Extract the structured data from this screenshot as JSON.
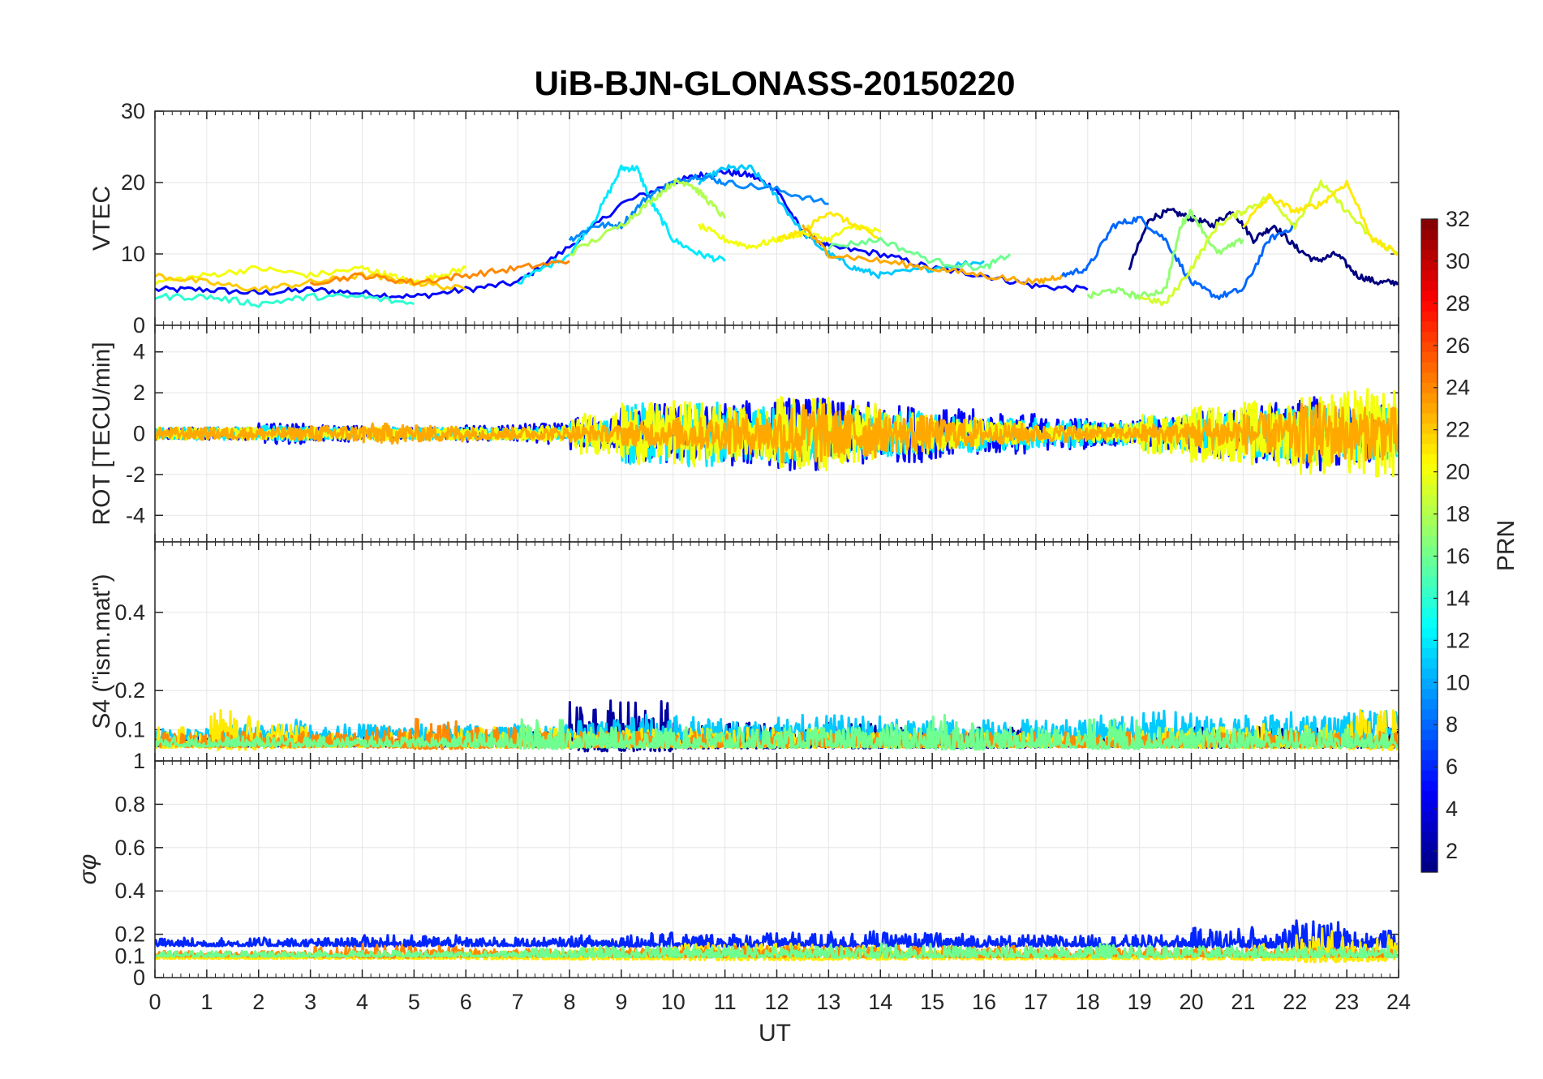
{
  "chart_data": {
    "type": "line",
    "title": "UiB-BJN-GLONASS-20150220",
    "xlabel": "UT",
    "xlim": [
      0,
      24
    ],
    "x_ticks": [
      "0",
      "1",
      "2",
      "3",
      "4",
      "5",
      "6",
      "7",
      "8",
      "9",
      "10",
      "11",
      "12",
      "13",
      "14",
      "15",
      "16",
      "17",
      "18",
      "19",
      "20",
      "21",
      "22",
      "23",
      "24"
    ],
    "grid": true,
    "colorbar": {
      "label": "PRN",
      "range": [
        1,
        32
      ],
      "ticks": [
        "2",
        "4",
        "6",
        "8",
        "10",
        "12",
        "14",
        "16",
        "18",
        "20",
        "22",
        "24",
        "26",
        "28",
        "30",
        "32"
      ],
      "colormap": "jet"
    },
    "panels": [
      {
        "ylabel": "VTEC",
        "ylim": [
          0,
          30
        ],
        "y_ticks": [
          "0",
          "10",
          "20",
          "30"
        ],
        "series": [
          {
            "prn": 5,
            "x": [
              0,
              1,
              2,
              3,
              4,
              5,
              6,
              7,
              8,
              9,
              10,
              10.5,
              11,
              11.5,
              12,
              12.5,
              13,
              14,
              15,
              16,
              17,
              18
            ],
            "y": [
              5,
              5,
              4.5,
              5,
              4.5,
              4,
              5,
              6,
              11,
              17,
              20,
              21,
              21.5,
              21,
              19,
              13,
              11,
              10,
              8,
              7,
              5.5,
              5
            ]
          },
          {
            "prn": 1,
            "x": [
              18.8,
              19.2,
              19.6,
              20,
              20.4,
              20.8,
              21.2,
              21.6,
              22,
              22.4,
              22.8,
              23.2,
              23.6,
              24
            ],
            "y": [
              8,
              15,
              16,
              15,
              14,
              16,
              12,
              14,
              11,
              9,
              10,
              7,
              6,
              6
            ]
          },
          {
            "prn": 12,
            "x": [
              7,
              8,
              8.5,
              9,
              9.3,
              9.6,
              10,
              10.5,
              11
            ],
            "y": [
              6,
              10,
              15,
              22,
              22,
              17,
              12,
              10,
              9
            ]
          },
          {
            "prn": 11,
            "x": [
              10.5,
              11,
              11.5,
              12,
              12.5,
              13,
              13.5,
              14,
              15,
              16
            ],
            "y": [
              20,
              22,
              22,
              18,
              13,
              10,
              8,
              7,
              8,
              9
            ]
          },
          {
            "prn": 9,
            "x": [
              8,
              8.5,
              9,
              9.5,
              10,
              10.5,
              11,
              12,
              13
            ],
            "y": [
              12,
              14,
              14,
              18,
              20,
              21,
              20,
              19,
              17
            ]
          },
          {
            "prn": 8,
            "x": [
              17.5,
              18,
              18.5,
              19,
              19.5,
              20,
              20.5,
              21,
              21.5,
              22
            ],
            "y": [
              7,
              8,
              14,
              15,
              12,
              6,
              4,
              5,
              12,
              14
            ]
          },
          {
            "prn": 20,
            "x": [
              0,
              1,
              2,
              3,
              4,
              4.5,
              5,
              5.5,
              6
            ],
            "y": [
              6,
              7,
              8,
              7,
              8,
              7,
              6,
              7,
              8
            ]
          },
          {
            "prn": 22,
            "x": [
              0,
              1,
              2,
              3,
              4,
              5,
              6
            ],
            "y": [
              7,
              6,
              5,
              6,
              7,
              6,
              5
            ]
          },
          {
            "prn": 24,
            "x": [
              3,
              4,
              5,
              6,
              7,
              8
            ],
            "y": [
              6,
              7,
              6,
              7,
              8,
              9
            ]
          },
          {
            "prn": 18,
            "x": [
              8,
              9,
              9.5,
              10,
              10.3,
              10.6,
              11
            ],
            "y": [
              10,
              14,
              17,
              20,
              20,
              18,
              15
            ]
          },
          {
            "prn": 20,
            "x": [
              10.5,
              11,
              11.5,
              12,
              12.5,
              13,
              13.5,
              14
            ],
            "y": [
              14,
              12,
              11,
              12,
              13,
              12,
              14,
              13
            ]
          },
          {
            "prn": 21,
            "x": [
              12,
              12.5,
              13,
              13.5,
              14
            ],
            "y": [
              12,
              13,
              16,
              14,
              12
            ]
          },
          {
            "prn": 23,
            "x": [
              12.5,
              13,
              14,
              15,
              16,
              17,
              17.5
            ],
            "y": [
              14,
              10,
              9,
              8,
              7,
              6,
              7
            ]
          },
          {
            "prn": 16,
            "x": [
              13,
              14,
              15,
              16,
              16.5
            ],
            "y": [
              11,
              12,
              9,
              8,
              10
            ]
          },
          {
            "prn": 17,
            "x": [
              18,
              18.5,
              19,
              19.5,
              19.8,
              20,
              20.5,
              21
            ],
            "y": [
              4,
              5,
              4,
              5,
              14,
              16,
              10,
              12
            ]
          },
          {
            "prn": 19,
            "x": [
              19,
              19.5,
              20,
              20.5,
              21,
              21.5,
              22,
              22.5,
              23,
              23.5,
              24
            ],
            "y": [
              4,
              3,
              8,
              14,
              16,
              18,
              14,
              20,
              16,
              12,
              10
            ]
          },
          {
            "prn": 21,
            "x": [
              21,
              21.5,
              22,
              22.5,
              23,
              23.5,
              24
            ],
            "y": [
              14,
              18,
              16,
              17,
              20,
              12,
              10
            ]
          },
          {
            "prn": 14,
            "x": [
              0,
              1,
              2,
              3,
              4,
              5
            ],
            "y": [
              4,
              4,
              3,
              4,
              4,
              3
            ]
          }
        ]
      },
      {
        "ylabel": "ROT [TECU/min]",
        "ylim": [
          -5.3,
          5.3
        ],
        "y_ticks": [
          "-4",
          "-2",
          "0",
          "2",
          "4"
        ],
        "series": [
          {
            "prn": 5,
            "x": [
              0,
              24
            ],
            "y": [
              0,
              0
            ],
            "noise": [
              0.3,
              0.3,
              0.5,
              0.4,
              0.3,
              0.3,
              0.4,
              0.5,
              0.8,
              1.5,
              1.4,
              1.6,
              1.8,
              1.6,
              1.4,
              1.2,
              1.0,
              0.8,
              0.6,
              0.8,
              1.2,
              1.5,
              1.8,
              1.5
            ]
          },
          {
            "prn": 12,
            "x": [
              0,
              24
            ],
            "y": [
              0,
              0
            ],
            "noise": [
              0.3,
              0.3,
              0.4,
              0.3,
              0.3,
              0.3,
              0.3,
              0.3,
              0.6,
              1.5,
              1.6,
              1.3,
              1.5,
              1.2,
              1.1,
              0.9,
              0.8,
              0.7,
              0.6,
              0.9,
              1.1,
              1.3,
              1.5,
              1.3
            ]
          },
          {
            "prn": 20,
            "x": [
              0,
              24
            ],
            "y": [
              0,
              0
            ],
            "noise": [
              0.3,
              0.3,
              0.3,
              0.3,
              0.3,
              0.3,
              0.3,
              0.4,
              1.0,
              1.5,
              1.6,
              1.3,
              1.8,
              1.5,
              1.0,
              0.8,
              0.6,
              0.4,
              0.5,
              1.0,
              1.4,
              1.6,
              2.0,
              2.2
            ]
          },
          {
            "prn": 23,
            "x": [
              0,
              24
            ],
            "y": [
              0,
              0
            ],
            "noise": [
              0.3,
              0.3,
              0.3,
              0.4,
              0.5,
              0.4,
              0.3,
              0.3,
              0.4,
              0.6,
              0.8,
              1.0,
              1.5,
              1.2,
              0.9,
              0.7,
              0.5,
              0.4,
              0.3,
              0.5,
              0.8,
              1.0,
              1.5,
              1.3
            ]
          }
        ]
      },
      {
        "ylabel": "S4 (\"ism.mat\")",
        "ylim": [
          0.02,
          0.58
        ],
        "y_ticks": [
          "0.1",
          "0.2",
          "0.4"
        ],
        "series": [
          {
            "prn": 2,
            "x": [
              0,
              24
            ],
            "y": [
              0.06,
              0.06
            ],
            "noise": [
              0.02,
              0.02,
              0.02,
              0.02,
              0.02,
              0.02,
              0.02,
              0.03,
              0.1,
              0.1,
              0.05,
              0.05,
              0.04,
              0.05,
              0.04,
              0.04,
              0.04,
              0.03,
              0.03,
              0.03,
              0.04,
              0.04,
              0.04,
              0.04
            ]
          },
          {
            "prn": 11,
            "x": [
              0,
              24
            ],
            "y": [
              0.08,
              0.08
            ],
            "noise": [
              0.02,
              0.03,
              0.04,
              0.03,
              0.03,
              0.03,
              0.03,
              0.03,
              0.04,
              0.05,
              0.05,
              0.04,
              0.05,
              0.05,
              0.04,
              0.04,
              0.04,
              0.05,
              0.05,
              0.06,
              0.05,
              0.06,
              0.05,
              0.06
            ]
          },
          {
            "prn": 21,
            "x": [
              0,
              24
            ],
            "y": [
              0.06,
              0.06
            ],
            "noise": [
              0.04,
              0.08,
              0.05,
              0.03,
              0.03,
              0.04,
              0.04,
              0.04,
              0.03,
              0.04,
              0.04,
              0.04,
              0.04,
              0.03,
              0.03,
              0.03,
              0.03,
              0.03,
              0.03,
              0.04,
              0.04,
              0.05,
              0.05,
              0.08
            ]
          },
          {
            "prn": 24,
            "x": [
              0,
              24
            ],
            "y": [
              0.06,
              0.06
            ],
            "noise": [
              0.03,
              0.03,
              0.03,
              0.03,
              0.04,
              0.06,
              0.04,
              0.03,
              0.03,
              0.03,
              0.03,
              0.03,
              0.03,
              0.03,
              0.03,
              0.03,
              0.03,
              0.03,
              0.03,
              0.03,
              0.03,
              0.03,
              0.03,
              0.03
            ]
          },
          {
            "prn": 16,
            "x": [
              0,
              24
            ],
            "y": [
              0.06,
              0.06
            ],
            "noise": [
              0.02,
              0.02,
              0.02,
              0.02,
              0.02,
              0.02,
              0.03,
              0.06,
              0.04,
              0.04,
              0.04,
              0.04,
              0.04,
              0.04,
              0.05,
              0.07,
              0.04,
              0.04,
              0.06,
              0.04,
              0.04,
              0.04,
              0.04,
              0.04
            ]
          }
        ]
      },
      {
        "ylabel": "σφ",
        "ylim": [
          0,
          1
        ],
        "y_ticks": [
          "0",
          "0.1",
          "0.2",
          "0.4",
          "0.6",
          "0.8",
          "1"
        ],
        "series": [
          {
            "prn": 6,
            "x": [
              0,
              24
            ],
            "y": [
              0.15,
              0.15
            ],
            "noise": [
              0.03,
              0.03,
              0.03,
              0.03,
              0.04,
              0.04,
              0.03,
              0.03,
              0.04,
              0.05,
              0.05,
              0.05,
              0.05,
              0.06,
              0.05,
              0.05,
              0.04,
              0.04,
              0.04,
              0.04,
              0.07,
              0.08,
              0.1,
              0.06
            ]
          },
          {
            "prn": 21,
            "x": [
              0,
              24
            ],
            "y": [
              0.09,
              0.09
            ],
            "noise": [
              0.02,
              0.02,
              0.02,
              0.02,
              0.02,
              0.02,
              0.03,
              0.03,
              0.04,
              0.04,
              0.06,
              0.06,
              0.06,
              0.05,
              0.04,
              0.04,
              0.04,
              0.03,
              0.03,
              0.03,
              0.04,
              0.06,
              0.12,
              0.1
            ]
          },
          {
            "prn": 24,
            "x": [
              0,
              24
            ],
            "y": [
              0.1,
              0.1
            ],
            "noise": [
              0.02,
              0.02,
              0.02,
              0.04,
              0.05,
              0.04,
              0.03,
              0.03,
              0.03,
              0.03,
              0.04,
              0.04,
              0.04,
              0.04,
              0.04,
              0.04,
              0.04,
              0.03,
              0.03,
              0.03,
              0.03,
              0.03,
              0.03,
              0.03
            ]
          },
          {
            "prn": 16,
            "x": [
              0,
              24
            ],
            "y": [
              0.1,
              0.1
            ],
            "noise": [
              0.02,
              0.02,
              0.02,
              0.02,
              0.02,
              0.02,
              0.02,
              0.03,
              0.04,
              0.04,
              0.04,
              0.04,
              0.04,
              0.05,
              0.05,
              0.04,
              0.04,
              0.04,
              0.05,
              0.04,
              0.04,
              0.04,
              0.04,
              0.04
            ]
          }
        ]
      }
    ]
  }
}
